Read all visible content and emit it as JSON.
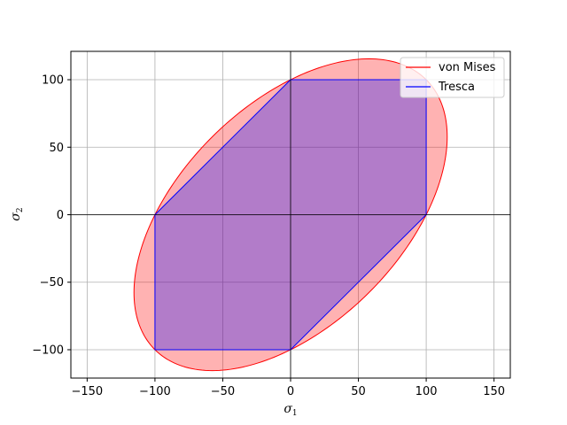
{
  "chart_data": {
    "type": "area",
    "title": "",
    "xlabel": "σ1",
    "ylabel": "σ2",
    "xlim": [
      -162,
      162
    ],
    "ylim": [
      -121,
      121
    ],
    "xticks": [
      -150,
      -100,
      -50,
      0,
      50,
      100,
      150
    ],
    "yticks": [
      -100,
      -50,
      0,
      50,
      100
    ],
    "xtick_labels": [
      "−150",
      "−100",
      "−50",
      "0",
      "50",
      "100",
      "150"
    ],
    "ytick_labels": [
      "−100",
      "−50",
      "0",
      "50",
      "100"
    ],
    "grid": true,
    "legend_position": "top-right",
    "yield_stress": 100,
    "series": [
      {
        "name": "von Mises",
        "kind": "ellipse",
        "equation": "σ1² − σ1·σ2 + σ2² = 100²",
        "line_color": "#ff0000",
        "fill_color": "#ff0000",
        "fill_alpha": 0.3
      },
      {
        "name": "Tresca",
        "kind": "polygon",
        "x": [
          0,
          100,
          100,
          0,
          -100,
          -100,
          0
        ],
        "y": [
          100,
          100,
          0,
          -100,
          -100,
          0,
          100
        ],
        "line_color": "#0000ff",
        "fill_color": "#0000ff",
        "fill_alpha": 0.3
      }
    ]
  }
}
